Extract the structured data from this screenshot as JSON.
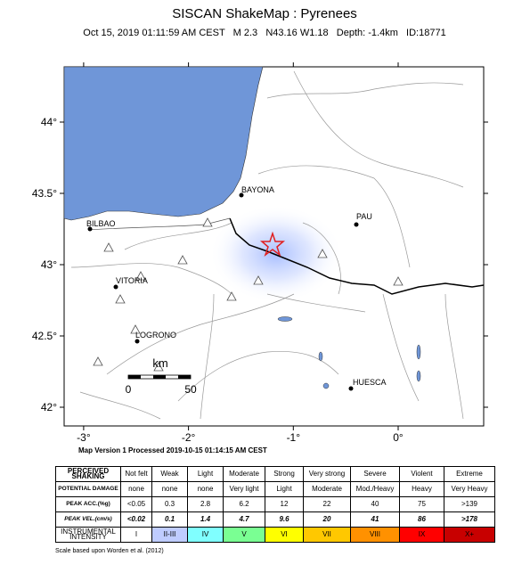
{
  "header": {
    "title": "SISCAN ShakeMap : Pyrenees",
    "subtitle": "Oct 15, 2019 01:11:59 AM CEST   M 2.3   N43.16 W1.18   Depth: -1.4km   ID:18771"
  },
  "map": {
    "lon_ticks": [
      {
        "value": -3,
        "label": "-3°"
      },
      {
        "value": -2,
        "label": "-2°"
      },
      {
        "value": -1,
        "label": "-1°"
      },
      {
        "value": 0,
        "label": "0°"
      }
    ],
    "lat_ticks": [
      {
        "value": 42,
        "label": "42°"
      },
      {
        "value": 42.5,
        "label": "42.5°"
      },
      {
        "value": 43,
        "label": "43°"
      },
      {
        "value": 43.5,
        "label": "43.5°"
      },
      {
        "value": 44,
        "label": "44°"
      }
    ],
    "places": [
      "BILBAO",
      "BAYONA",
      "PAU",
      "VITORIA",
      "LOGRONO",
      "HUESCA"
    ],
    "scale_bar": {
      "unit": "km",
      "labels": [
        "0",
        "50"
      ]
    },
    "processed": "Map Version 1 Processed 2019-10-15 01:14:15 AM CEST"
  },
  "table": {
    "rows": [
      [
        "PERCEIVED SHAKING",
        "Not felt",
        "Weak",
        "Light",
        "Moderate",
        "Strong",
        "Very strong",
        "Severe",
        "Violent",
        "Extreme"
      ],
      [
        "POTENTIAL DAMAGE",
        "none",
        "none",
        "none",
        "Very light",
        "Light",
        "Moderate",
        "Mod./Heavy",
        "Heavy",
        "Very Heavy"
      ],
      [
        "PEAK ACC.(%g)",
        "<0.05",
        "0.3",
        "2.8",
        "6.2",
        "12",
        "22",
        "40",
        "75",
        ">139"
      ],
      [
        "PEAK VEL.(cm/s)",
        "<0.02",
        "0.1",
        "1.4",
        "4.7",
        "9.6",
        "20",
        "41",
        "86",
        ">178"
      ],
      [
        "INSTRUMENTAL INTENSITY",
        "I",
        "II-III",
        "IV",
        "V",
        "VI",
        "VII",
        "VIII",
        "IX",
        "X+"
      ]
    ]
  },
  "footnote": "Scale based upon Worden et al. (2012)"
}
